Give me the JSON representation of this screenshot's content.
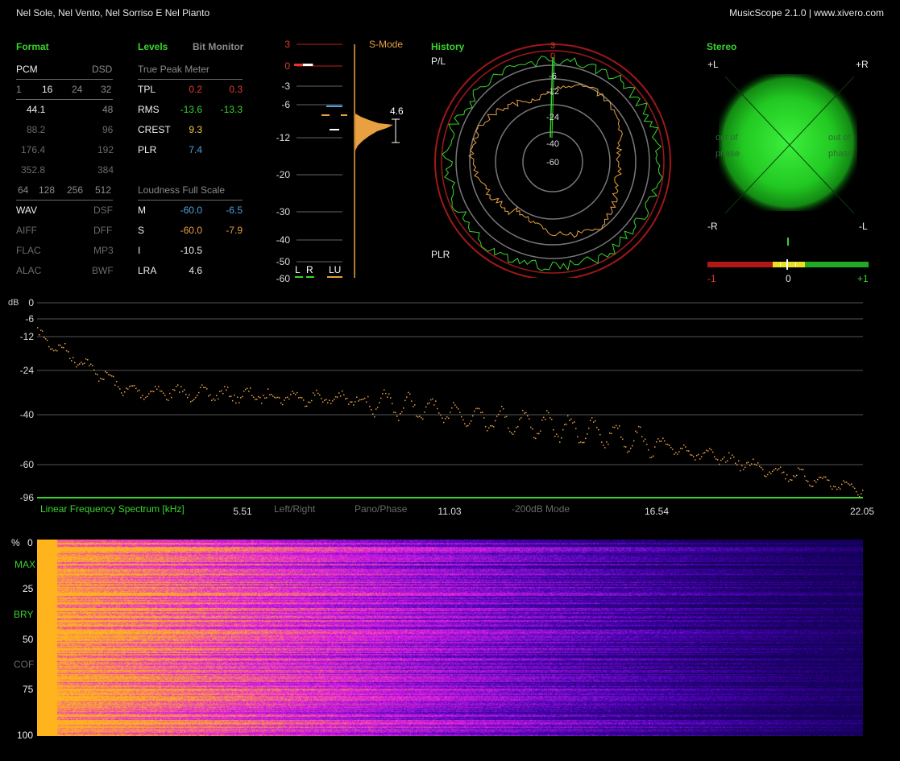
{
  "title_bar": {
    "track_title": "Nel Sole, Nel Vento, Nel Sorriso E Nel Pianto",
    "app_info": "MusicScope 2.1.0 | www.xivero.com"
  },
  "format": {
    "header": "Format",
    "pcm_label": "PCM",
    "dsd_label": "DSD",
    "bit_depths": [
      "1",
      "16",
      "24",
      "32"
    ],
    "sample_rates": [
      [
        "44.1",
        "48"
      ],
      [
        "88.2",
        "96"
      ],
      [
        "176.4",
        "192"
      ],
      [
        "352.8",
        "384"
      ]
    ],
    "dsd_rates": [
      "64",
      "128",
      "256",
      "512"
    ],
    "containers": [
      [
        "WAV",
        "DSF"
      ],
      [
        "AIFF",
        "DFF"
      ],
      [
        "FLAC",
        "MP3"
      ],
      [
        "ALAC",
        "BWF"
      ]
    ]
  },
  "levels": {
    "header": "Levels",
    "bit_monitor": "Bit Monitor",
    "true_peak_title": "True Peak Meter",
    "rows": [
      {
        "label": "TPL",
        "l": "0.2",
        "r": "0.3"
      },
      {
        "label": "RMS",
        "l": "-13.6",
        "r": "-13.3"
      },
      {
        "label": "CREST",
        "l": "9.3"
      },
      {
        "label": "PLR",
        "l": "7.4"
      }
    ],
    "loudness_title": "Loudness Full Scale",
    "loudness_rows": [
      {
        "label": "M",
        "a": "-60.0",
        "b": "-6.5"
      },
      {
        "label": "S",
        "a": "-60.0",
        "b": "-7.9"
      },
      {
        "label": "I",
        "a": "-10.5"
      },
      {
        "label": "LRA",
        "a": "4.6"
      }
    ]
  },
  "meter": {
    "mode": "S-Mode",
    "scale": [
      "3",
      "0",
      "-3",
      "-6",
      "-12",
      "-20",
      "-30",
      "-40",
      "-50",
      "-60"
    ],
    "legend": [
      "L",
      "R",
      "LU"
    ],
    "lra_value": "4.6"
  },
  "history": {
    "header": "History",
    "top_label": "P/L",
    "bottom_label": "PLR",
    "rings": [
      "3",
      "0",
      "-6",
      "-12",
      "-24",
      "-40",
      "-60"
    ]
  },
  "stereo": {
    "header": "Stereo",
    "corners": [
      "+L",
      "+R",
      "-R",
      "-L"
    ],
    "phase_text": [
      "out of",
      "phase"
    ],
    "correlation_labels": [
      "-1",
      "0",
      "+1"
    ]
  },
  "spectrum": {
    "unit": "dB",
    "y_ticks": [
      "0",
      "-6",
      "-12",
      "-24",
      "-40",
      "-60",
      "-96"
    ],
    "x_title": "Linear Frequency Spectrum [kHz]",
    "x_ticks": [
      "5.51",
      "11.03",
      "16.54",
      "22.05"
    ],
    "modes": [
      "Left/Right",
      "Pano/Phase",
      "-200dB Mode"
    ]
  },
  "spectrogram": {
    "unit": "%",
    "labels": [
      "0",
      "MAX",
      "25",
      "BRY",
      "50",
      "COF",
      "75",
      "100"
    ]
  },
  "colors": {
    "accent_green": "#39d42c",
    "peak_red": "#e23a2a",
    "value_blue": "#4aa3e0",
    "loudness_orange": "#e8a040"
  }
}
